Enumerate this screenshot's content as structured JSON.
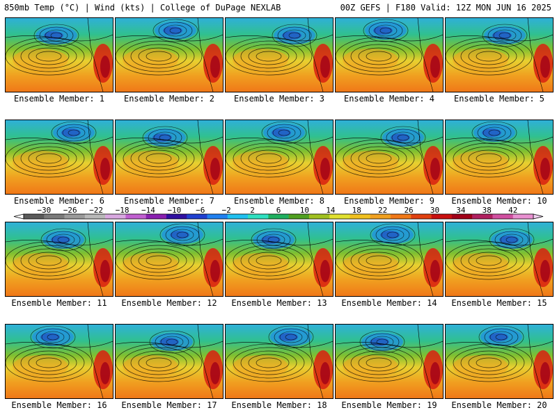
{
  "header": {
    "left": "850mb Temp (°C) | Wind (kts) | College of DuPage NEXLAB",
    "right": "00Z GEFS | F180 Valid: 12Z MON JUN 16 2025"
  },
  "panel_label_prefix": "Ensemble Member: ",
  "members": [
    1,
    2,
    3,
    4,
    5,
    6,
    7,
    8,
    9,
    10,
    11,
    12,
    13,
    14,
    15,
    16,
    17,
    18,
    19,
    20
  ],
  "colorbar": {
    "ticks": [
      -30,
      -26,
      -22,
      -18,
      -14,
      -10,
      -6,
      -2,
      2,
      6,
      10,
      14,
      18,
      22,
      26,
      30,
      34,
      38,
      42
    ],
    "colors": [
      "#5a5a5a",
      "#7a7a7a",
      "#9a9a9a",
      "#b8b8b8",
      "#d8a8e0",
      "#c060d0",
      "#8a20b0",
      "#3010a0",
      "#2040d0",
      "#2080f0",
      "#20c0f0",
      "#30e0c0",
      "#20b060",
      "#50a020",
      "#a0c020",
      "#e0e030",
      "#f0c020",
      "#f0a020",
      "#f07818",
      "#e04010",
      "#c81010",
      "#a00018",
      "#b02060",
      "#d050a0",
      "#e890d0"
    ]
  }
}
